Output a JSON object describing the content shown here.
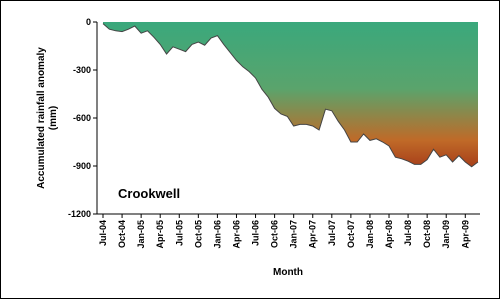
{
  "chart_data": {
    "type": "area",
    "title": "Crookwell",
    "y_label": [
      "Accumulated rainfall anomaly",
      "(mm)"
    ],
    "x_label": "Month",
    "categories": [
      "Jul-04",
      null,
      null,
      "Oct-04",
      null,
      null,
      "Jan-05",
      null,
      null,
      "Apr-05",
      null,
      null,
      "Jul-05",
      null,
      null,
      "Oct-05",
      null,
      null,
      "Jan-06",
      null,
      null,
      "Apr-06",
      null,
      null,
      "Jul-06",
      null,
      null,
      "Oct-06",
      null,
      null,
      "Jan-07",
      null,
      null,
      "Apr-07",
      null,
      null,
      "Jul-07",
      null,
      null,
      "Oct-07",
      null,
      null,
      "Jan-08",
      null,
      null,
      "Apr-08",
      null,
      null,
      "Jul-08",
      null,
      null,
      "Oct-08",
      null,
      null,
      "Jan-09",
      null,
      null,
      "Apr-09",
      null,
      null
    ],
    "values": [
      -10,
      -45,
      -55,
      -60,
      -45,
      -25,
      -70,
      -55,
      -95,
      -140,
      -200,
      -155,
      -170,
      -185,
      -140,
      -125,
      -145,
      -100,
      -85,
      -140,
      -190,
      -240,
      -280,
      -310,
      -350,
      -420,
      -470,
      -540,
      -575,
      -590,
      -650,
      -640,
      -640,
      -650,
      -675,
      -545,
      -555,
      -620,
      -675,
      -750,
      -750,
      -700,
      -740,
      -730,
      -750,
      -775,
      -845,
      -855,
      -870,
      -890,
      -890,
      -860,
      -795,
      -845,
      -830,
      -875,
      -835,
      -875,
      -905,
      -875
    ],
    "colors": [
      "#3aa87c",
      "#5aa46c",
      "#c06a28",
      "#a43a18"
    ],
    "ylim": [
      -1200,
      0
    ],
    "yticks": [
      -1200,
      -900,
      -600,
      -300,
      0
    ]
  }
}
